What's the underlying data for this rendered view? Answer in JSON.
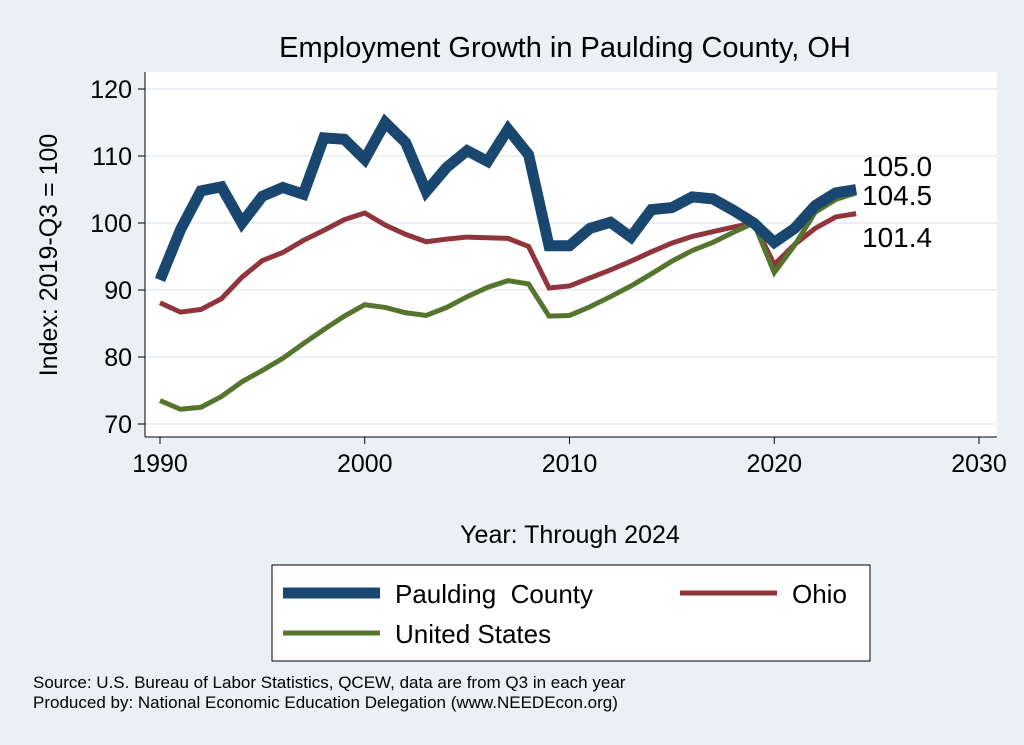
{
  "chart_data": {
    "type": "line",
    "title": "Employment Growth in Paulding County, OH",
    "xlabel": "Year: Through 2024",
    "ylabel": "Index: 2019-Q3 = 100",
    "xlim": [
      1990,
      2030
    ],
    "ylim": [
      67,
      122
    ],
    "xticks": [
      1990,
      2000,
      2010,
      2020,
      2030
    ],
    "yticks": [
      70,
      80,
      90,
      100,
      110,
      120
    ],
    "grid": true,
    "legend_placement": "bottom",
    "x": [
      1990,
      1991,
      1992,
      1993,
      1994,
      1995,
      1996,
      1997,
      1998,
      1999,
      2000,
      2001,
      2002,
      2003,
      2004,
      2005,
      2006,
      2007,
      2008,
      2009,
      2010,
      2011,
      2012,
      2013,
      2014,
      2015,
      2016,
      2017,
      2018,
      2019,
      2020,
      2021,
      2022,
      2023,
      2024
    ],
    "series": [
      {
        "name": "Paulding  County",
        "color": "#1a476f",
        "values": [
          91.5,
          99,
          104.8,
          105.4,
          100,
          104,
          105.3,
          104.3,
          112.7,
          112.5,
          109.5,
          115,
          112,
          104.7,
          108.3,
          110.8,
          109.2,
          114,
          110.2,
          96.6,
          96.6,
          99.2,
          100.1,
          97.9,
          102,
          102.3,
          103.9,
          103.6,
          101.9,
          100,
          97.1,
          99.2,
          102.6,
          104.5,
          105.0
        ],
        "end_label": "105.0"
      },
      {
        "name": "Ohio",
        "color": "#90353b",
        "values": [
          88.1,
          86.7,
          87.1,
          88.7,
          91.9,
          94.4,
          95.6,
          97.4,
          98.9,
          100.5,
          101.5,
          99.7,
          98.3,
          97.2,
          97.6,
          97.9,
          97.8,
          97.7,
          96.5,
          90.3,
          90.6,
          91.8,
          93,
          94.3,
          95.7,
          97,
          98,
          98.7,
          99.4,
          100,
          93.8,
          96.8,
          99.2,
          100.9,
          101.4
        ],
        "end_label": "101.4"
      },
      {
        "name": "United States",
        "color": "#55752f",
        "values": [
          73.5,
          72.2,
          72.5,
          74.1,
          76.3,
          78,
          79.8,
          82,
          84.1,
          86.1,
          87.8,
          87.4,
          86.6,
          86.2,
          87.4,
          89,
          90.4,
          91.4,
          90.9,
          86.1,
          86.2,
          87.5,
          89,
          90.6,
          92.4,
          94.3,
          95.9,
          97.1,
          98.6,
          100,
          92.6,
          96.7,
          101.6,
          103.5,
          104.5
        ],
        "end_label": "104.5"
      }
    ]
  },
  "colors": {
    "title": "#1a2f5a",
    "background": "#eaf0f3",
    "grid": "#eaf0f3"
  },
  "notes": {
    "source": "Source: U.S. Bureau of Labor Statistics, QCEW, data are from Q3 in each year",
    "produced": "Produced by: National Economic Education Delegation (www.NEEDEcon.org)"
  }
}
